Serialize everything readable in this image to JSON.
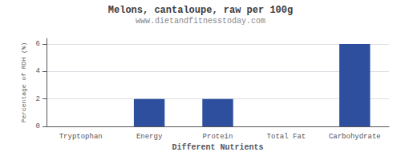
{
  "chart_data": {
    "type": "bar",
    "title": "Melons, cantaloupe, raw per 100g",
    "subtitle": "www.dietandfitnesstoday.com",
    "xlabel": "Different Nutrients",
    "ylabel": "Percentage of RDH (%)",
    "categories": [
      "Tryptophan",
      "Energy",
      "Protein",
      "Total Fat",
      "Carbohydrate"
    ],
    "values": [
      0.0,
      2.0,
      2.0,
      0.0,
      6.0
    ],
    "color": "#2e4f9e",
    "ylim": [
      0,
      6.4
    ],
    "yticks": [
      0,
      2,
      4,
      6
    ],
    "grid": true
  }
}
